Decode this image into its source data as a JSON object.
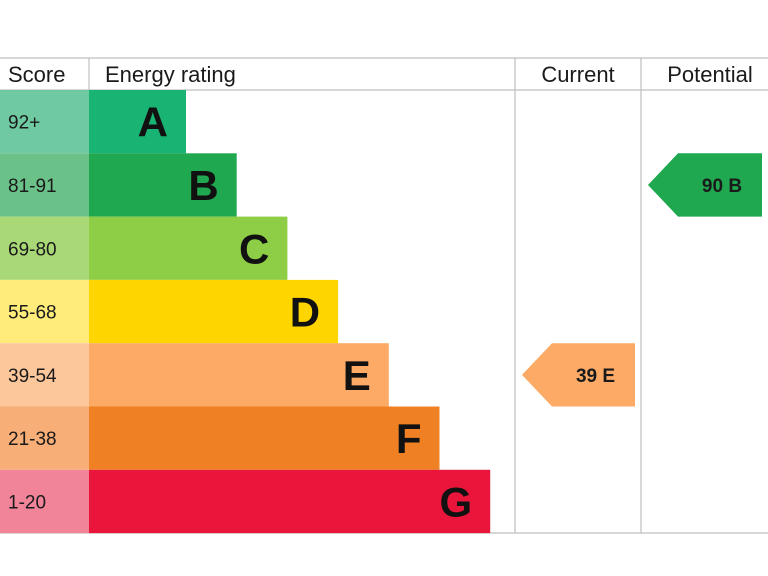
{
  "headers": {
    "score": "Score",
    "energy_rating": "Energy rating",
    "current": "Current",
    "potential": "Potential"
  },
  "chart_data": {
    "type": "bar",
    "bands": [
      {
        "letter": "A",
        "score_range": "92+",
        "color": "#6fc9a1",
        "bar_color": "#19b374"
      },
      {
        "letter": "B",
        "score_range": "81-91",
        "color": "#6bc288",
        "bar_color": "#1fa84f"
      },
      {
        "letter": "C",
        "score_range": "69-80",
        "color": "#a9d977",
        "bar_color": "#8dce46"
      },
      {
        "letter": "D",
        "score_range": "55-68",
        "color": "#ffec7a",
        "bar_color": "#ffd500"
      },
      {
        "letter": "E",
        "score_range": "39-54",
        "color": "#fcc79a",
        "bar_color": "#fcaa65"
      },
      {
        "letter": "F",
        "score_range": "21-38",
        "color": "#f7ae77",
        "bar_color": "#ef8023"
      },
      {
        "letter": "G",
        "score_range": "1-20",
        "color": "#f2849a",
        "bar_color": "#e9153b"
      }
    ],
    "current": {
      "value": 39,
      "band": "E",
      "label": "39  E",
      "color": "#fcaa65"
    },
    "potential": {
      "value": 90,
      "band": "B",
      "label": "90  B",
      "color": "#1fa84f"
    }
  }
}
